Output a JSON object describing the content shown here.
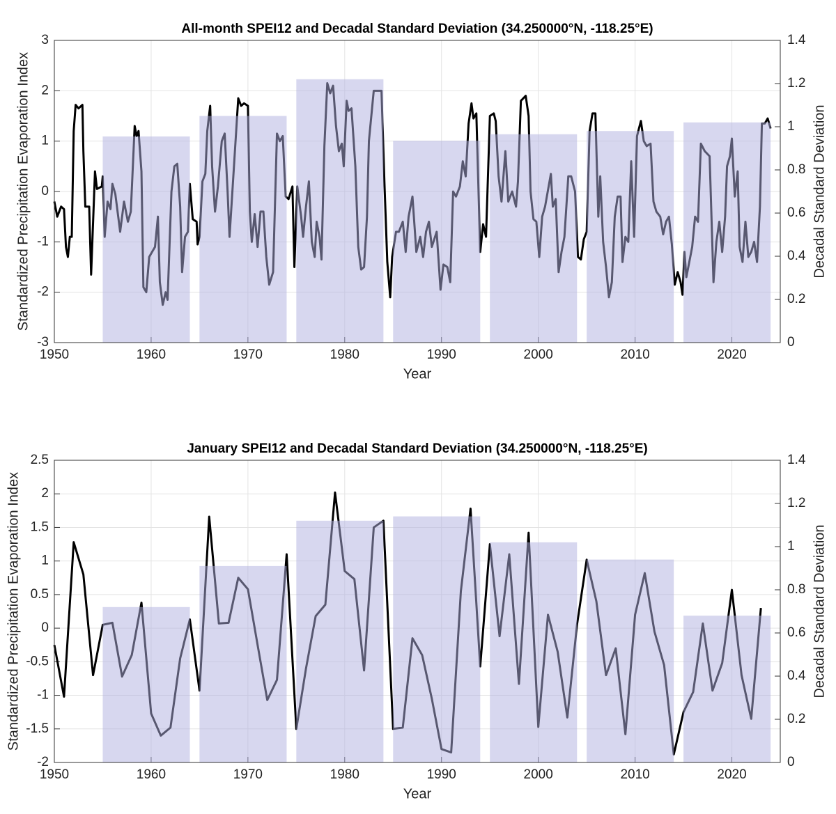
{
  "chart_data": [
    {
      "type": "line",
      "title": "All-month SPEI12 and Decadal Standard Deviation (34.250000°N, -118.25°E)",
      "xlabel": "Year",
      "ylabel": "Standardized Precipitation Evaporation Index",
      "y2label": "Decadal Standard Deviation",
      "xlim": [
        1950,
        2025
      ],
      "xticks": [
        1950,
        1960,
        1970,
        1980,
        1990,
        2000,
        2010,
        2020
      ],
      "ylim": [
        -3,
        3
      ],
      "yticks": [
        -3,
        -2,
        -1,
        0,
        1,
        2,
        3
      ],
      "y2lim": [
        0,
        1.4
      ],
      "y2ticks": [
        0,
        0.2,
        0.4,
        0.6,
        0.8,
        1,
        1.2,
        1.4
      ],
      "grid": true,
      "series": [
        {
          "type": "line",
          "color": "#000000",
          "x": [
            1950.0,
            1950.3,
            1950.7,
            1951.0,
            1951.2,
            1951.4,
            1951.6,
            1951.8,
            1952.0,
            1952.2,
            1952.5,
            1952.9,
            1953.0,
            1953.2,
            1953.6,
            1953.8,
            1954.2,
            1954.4,
            1954.9,
            1955.0,
            1955.2,
            1955.5,
            1955.8,
            1956.0,
            1956.3,
            1956.8,
            1957.2,
            1957.6,
            1957.9,
            1958.3,
            1958.5,
            1958.7,
            1959.0,
            1959.2,
            1959.5,
            1959.8,
            1960.1,
            1960.4,
            1960.7,
            1960.9,
            1961.2,
            1961.5,
            1961.7,
            1962.1,
            1962.4,
            1962.7,
            1963.0,
            1963.2,
            1963.5,
            1963.8,
            1964.0,
            1964.3,
            1964.7,
            1964.8,
            1965.0,
            1965.3,
            1965.6,
            1965.8,
            1966.1,
            1966.3,
            1966.6,
            1966.9,
            1967.3,
            1967.6,
            1967.9,
            1968.1,
            1969.0,
            1969.3,
            1969.6,
            1970.0,
            1970.2,
            1970.4,
            1970.7,
            1971.0,
            1971.3,
            1971.6,
            1971.9,
            1972.2,
            1972.6,
            1973.0,
            1973.3,
            1973.6,
            1973.9,
            1974.2,
            1974.6,
            1974.8,
            1975.1,
            1975.5,
            1975.7,
            1976.0,
            1976.3,
            1976.6,
            1976.9,
            1977.1,
            1977.4,
            1977.6,
            1977.9,
            1978.2,
            1978.5,
            1978.8,
            1979.1,
            1979.4,
            1979.7,
            1979.9,
            1980.2,
            1980.4,
            1980.7,
            1981.1,
            1981.4,
            1981.7,
            1982.0,
            1982.3,
            1982.5,
            1983.0,
            1983.4,
            1983.8,
            1984.1,
            1984.4,
            1984.7,
            1984.9,
            1985.3,
            1985.6,
            1986.0,
            1986.3,
            1986.6,
            1987.0,
            1987.4,
            1987.8,
            1988.1,
            1988.4,
            1988.7,
            1989.0,
            1989.5,
            1989.9,
            1990.2,
            1990.6,
            1990.9,
            1991.2,
            1991.5,
            1991.9,
            1992.2,
            1992.5,
            1992.8,
            1993.1,
            1993.3,
            1993.6,
            1994.0,
            1994.3,
            1994.6,
            1995.0,
            1995.4,
            1995.6,
            1995.9,
            1996.2,
            1996.6,
            1996.9,
            1997.3,
            1997.7,
            1997.9,
            1998.2,
            1998.7,
            1999.0,
            1999.2,
            1999.5,
            1999.8,
            2000.1,
            2000.4,
            2000.7,
            2001.3,
            2001.5,
            2001.8,
            2002.1,
            2002.4,
            2002.7,
            2003.1,
            2003.4,
            2003.8,
            2004.1,
            2004.4,
            2004.7,
            2005.0,
            2005.3,
            2005.6,
            2005.9,
            2006.2,
            2006.4,
            2006.7,
            2007.0,
            2007.3,
            2007.6,
            2007.9,
            2008.2,
            2008.5,
            2008.7,
            2009.0,
            2009.3,
            2009.6,
            2009.9,
            2010.2,
            2010.6,
            2010.9,
            2011.2,
            2011.6,
            2011.9,
            2012.2,
            2012.6,
            2012.9,
            2013.2,
            2013.5,
            2013.8,
            2014.1,
            2014.4,
            2014.7,
            2014.9,
            2015.1,
            2015.3,
            2015.7,
            2015.9,
            2016.2,
            2016.5,
            2016.8,
            2017.2,
            2017.7,
            2018.1,
            2018.4,
            2018.7,
            2019.0,
            2019.3,
            2019.5,
            2019.8,
            2020.0,
            2020.3,
            2020.6,
            2020.8,
            2021.1,
            2021.4,
            2021.7,
            2022.0,
            2022.3,
            2022.6,
            2022.9,
            2023.1,
            2023.4,
            2023.7,
            2024.0
          ],
          "values": [
            -0.2,
            -0.5,
            -0.3,
            -0.35,
            -1.1,
            -1.3,
            -0.9,
            -0.9,
            1.2,
            1.72,
            1.65,
            1.72,
            0.8,
            -0.3,
            -0.3,
            -1.65,
            0.4,
            0.05,
            0.1,
            0.3,
            -0.9,
            -0.2,
            -0.35,
            0.15,
            -0.05,
            -0.8,
            -0.2,
            -0.6,
            -0.4,
            1.3,
            1.1,
            1.2,
            0.4,
            -1.9,
            -2.0,
            -1.3,
            -1.2,
            -1.1,
            -0.5,
            -1.8,
            -2.25,
            -2.0,
            -2.15,
            0.0,
            0.5,
            0.55,
            -0.3,
            -1.6,
            -0.9,
            -0.8,
            0.15,
            -0.55,
            -0.6,
            -1.05,
            -0.9,
            0.2,
            0.35,
            1.2,
            1.7,
            0.5,
            -0.4,
            0.1,
            1.0,
            1.15,
            0.0,
            -0.9,
            1.85,
            1.7,
            1.75,
            1.7,
            -0.4,
            -1.0,
            -0.45,
            -1.1,
            -0.4,
            -0.4,
            -1.3,
            -1.85,
            -1.6,
            1.15,
            1.0,
            1.1,
            -0.1,
            -0.15,
            0.1,
            -1.5,
            0.1,
            -0.5,
            -0.9,
            -0.3,
            0.2,
            -1.0,
            -1.3,
            -0.6,
            -0.9,
            -1.35,
            0.9,
            2.15,
            1.95,
            2.1,
            1.3,
            0.8,
            0.95,
            0.5,
            1.8,
            1.6,
            1.65,
            0.5,
            -1.1,
            -1.55,
            -1.5,
            -0.5,
            1.0,
            2.0,
            2.0,
            2.0,
            0.2,
            -1.4,
            -2.1,
            -1.3,
            -0.8,
            -0.8,
            -0.6,
            -1.2,
            -0.5,
            -0.1,
            -1.2,
            -0.9,
            -1.3,
            -0.8,
            -0.6,
            -1.1,
            -0.8,
            -1.95,
            -1.45,
            -1.5,
            -1.8,
            0.0,
            -0.1,
            0.1,
            0.6,
            0.3,
            1.35,
            1.75,
            1.45,
            1.55,
            -1.2,
            -0.65,
            -0.9,
            1.5,
            1.55,
            1.4,
            0.3,
            -0.2,
            0.8,
            -0.2,
            0.0,
            -0.3,
            0.2,
            1.8,
            1.9,
            1.5,
            0.0,
            -0.55,
            -0.6,
            -1.3,
            -0.5,
            -0.3,
            0.35,
            -0.3,
            -0.15,
            -1.6,
            -1.2,
            -0.9,
            0.3,
            0.3,
            0.0,
            -1.3,
            -1.35,
            -0.95,
            -0.8,
            1.2,
            1.55,
            1.55,
            -0.5,
            0.3,
            -1.0,
            -1.5,
            -2.1,
            -1.8,
            -0.5,
            -0.1,
            -0.1,
            -1.4,
            -0.9,
            -1.0,
            0.6,
            -0.9,
            1.1,
            1.4,
            1.0,
            0.9,
            0.95,
            -0.2,
            -0.4,
            -0.5,
            -0.85,
            -0.6,
            -0.5,
            -1.05,
            -1.85,
            -1.6,
            -1.8,
            -2.05,
            -1.2,
            -1.7,
            -1.3,
            -1.1,
            -0.5,
            -0.6,
            0.95,
            0.8,
            0.7,
            -1.8,
            -1.0,
            -0.6,
            -1.2,
            -0.5,
            0.5,
            0.7,
            1.05,
            -0.1,
            0.4,
            -1.1,
            -1.4,
            -0.6,
            -1.3,
            -1.2,
            -1.0,
            -1.4,
            -0.3,
            1.35,
            1.35,
            1.45,
            1.25
          ]
        },
        {
          "type": "bar",
          "axis": "y2",
          "color": "#b0b0e0",
          "x_start": [
            1955,
            1965,
            1975,
            1985,
            1995,
            2005,
            2015
          ],
          "x_end": [
            1964,
            1974,
            1984,
            1994,
            2004,
            2014,
            2024
          ],
          "values": [
            0.955,
            1.05,
            1.22,
            0.935,
            0.965,
            0.98,
            1.02
          ]
        }
      ]
    },
    {
      "type": "line",
      "title": "January SPEI12 and Decadal Standard Deviation (34.250000°N, -118.25°E)",
      "xlabel": "Year",
      "ylabel": "Standardized Precipitation Evaporation Index",
      "y2label": "Decadal Standard Deviation",
      "xlim": [
        1950,
        2025
      ],
      "xticks": [
        1950,
        1960,
        1970,
        1980,
        1990,
        2000,
        2010,
        2020
      ],
      "ylim": [
        -2,
        2.5
      ],
      "yticks": [
        -2,
        -1.5,
        -1,
        -0.5,
        0,
        0.5,
        1,
        1.5,
        2,
        2.5
      ],
      "y2lim": [
        0,
        1.4
      ],
      "y2ticks": [
        0,
        0.2,
        0.4,
        0.6,
        0.8,
        1,
        1.2,
        1.4
      ],
      "grid": true,
      "series": [
        {
          "type": "line",
          "color": "#000000",
          "x": [
            1950,
            1951,
            1952,
            1953,
            1954,
            1955,
            1956,
            1957,
            1958,
            1959,
            1960,
            1961,
            1962,
            1963,
            1964,
            1965,
            1966,
            1967,
            1968,
            1969,
            1970,
            1971,
            1972,
            1973,
            1974,
            1975,
            1976,
            1977,
            1978,
            1979,
            1980,
            1981,
            1982,
            1983,
            1984,
            1985,
            1986,
            1987,
            1988,
            1989,
            1990,
            1991,
            1992,
            1993,
            1994,
            1995,
            1996,
            1997,
            1998,
            1999,
            2000,
            2001,
            2002,
            2003,
            2004,
            2005,
            2006,
            2007,
            2008,
            2009,
            2010,
            2011,
            2012,
            2013,
            2014,
            2015,
            2016,
            2017,
            2018,
            2019,
            2020,
            2021,
            2022,
            2023
          ],
          "values": [
            -0.25,
            -1.02,
            1.28,
            0.8,
            -0.7,
            0.05,
            0.08,
            -0.72,
            -0.4,
            0.38,
            -1.27,
            -1.6,
            -1.48,
            -0.45,
            0.13,
            -0.93,
            1.66,
            0.07,
            0.08,
            0.75,
            0.58,
            -0.25,
            -1.07,
            -0.77,
            1.1,
            -1.5,
            -0.6,
            0.18,
            0.35,
            2.02,
            0.85,
            0.73,
            -0.63,
            1.5,
            1.6,
            -1.5,
            -1.48,
            -0.15,
            -0.4,
            -1.05,
            -1.8,
            -1.85,
            0.55,
            1.78,
            -0.57,
            1.25,
            -0.12,
            1.1,
            -0.83,
            1.42,
            -1.47,
            0.2,
            -0.35,
            -1.33,
            0.05,
            1.02,
            0.4,
            -0.7,
            -0.3,
            -1.58,
            0.2,
            0.82,
            -0.05,
            -0.55,
            -1.88,
            -1.25,
            -0.95,
            0.07,
            -0.93,
            -0.52,
            0.57,
            -0.7,
            -1.35,
            0.3
          ]
        },
        {
          "type": "bar",
          "axis": "y2",
          "color": "#b0b0e0",
          "x_start": [
            1955,
            1965,
            1975,
            1985,
            1995,
            2005,
            2015
          ],
          "x_end": [
            1964,
            1974,
            1984,
            1994,
            2004,
            2014,
            2024
          ],
          "values": [
            0.72,
            0.91,
            1.12,
            1.14,
            1.02,
            0.94,
            0.68
          ]
        }
      ]
    }
  ]
}
